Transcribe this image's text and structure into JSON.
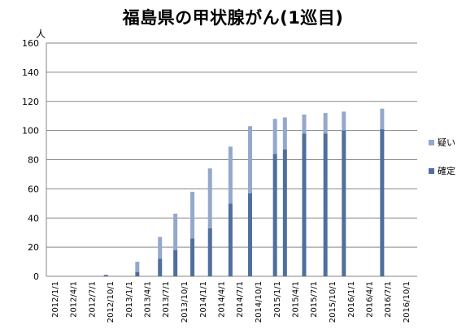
{
  "chart_data": {
    "type": "bar",
    "stacked": true,
    "title": "福島県の甲状腺がん(1巡目)",
    "ylabel": "人",
    "xlabel": "",
    "ylim": [
      0,
      160
    ],
    "yticks": [
      0,
      20,
      40,
      60,
      80,
      100,
      120,
      140,
      160
    ],
    "grid": "horizontal",
    "legend_position": "right",
    "categories": [
      "2012/1/1",
      "2012/4/1",
      "2012/7/1",
      "2012/10/1",
      "2013/1/1",
      "2013/4/1",
      "2013/7/1",
      "2013/10/1",
      "2014/1/1",
      "2014/4/1",
      "2014/7/1",
      "2014/10/1",
      "2015/1/1",
      "2015/4/1",
      "2015/7/1",
      "2015/10/1",
      "2016/1/1",
      "2016/4/1",
      "2016/7/1",
      "2016/10/1"
    ],
    "bars": [
      {
        "date": "2012/9/11",
        "confirmed": 1,
        "suspected": 0
      },
      {
        "date": "2013/2/13",
        "confirmed": 3,
        "suspected": 7
      },
      {
        "date": "2013/6/5",
        "confirmed": 12,
        "suspected": 15
      },
      {
        "date": "2013/8/20",
        "confirmed": 18,
        "suspected": 25
      },
      {
        "date": "2013/11/12",
        "confirmed": 26,
        "suspected": 32
      },
      {
        "date": "2014/2/7",
        "confirmed": 33,
        "suspected": 41
      },
      {
        "date": "2014/5/19",
        "confirmed": 50,
        "suspected": 39
      },
      {
        "date": "2014/8/24",
        "confirmed": 57,
        "suspected": 46
      },
      {
        "date": "2014/12/25",
        "confirmed": 84,
        "suspected": 24
      },
      {
        "date": "2015/2/12",
        "confirmed": 87,
        "suspected": 22
      },
      {
        "date": "2015/5/18",
        "confirmed": 98,
        "suspected": 13
      },
      {
        "date": "2015/8/31",
        "confirmed": 98,
        "suspected": 14
      },
      {
        "date": "2015/11/30",
        "confirmed": 100,
        "suspected": 13
      },
      {
        "date": "2016/6/6",
        "confirmed": 101,
        "suspected": 14
      }
    ],
    "series": [
      {
        "name": "疑い",
        "key": "suspected",
        "color": "#94a8cc"
      },
      {
        "name": "確定",
        "key": "confirmed",
        "color": "#4f6f9e"
      }
    ]
  },
  "colors": {
    "axis": "#868686",
    "grid": "#878787",
    "confirmed": "#4f6f9e",
    "suspected": "#94a8cc"
  },
  "legend": {
    "suspected_label": "疑い",
    "confirmed_label": "確定"
  }
}
